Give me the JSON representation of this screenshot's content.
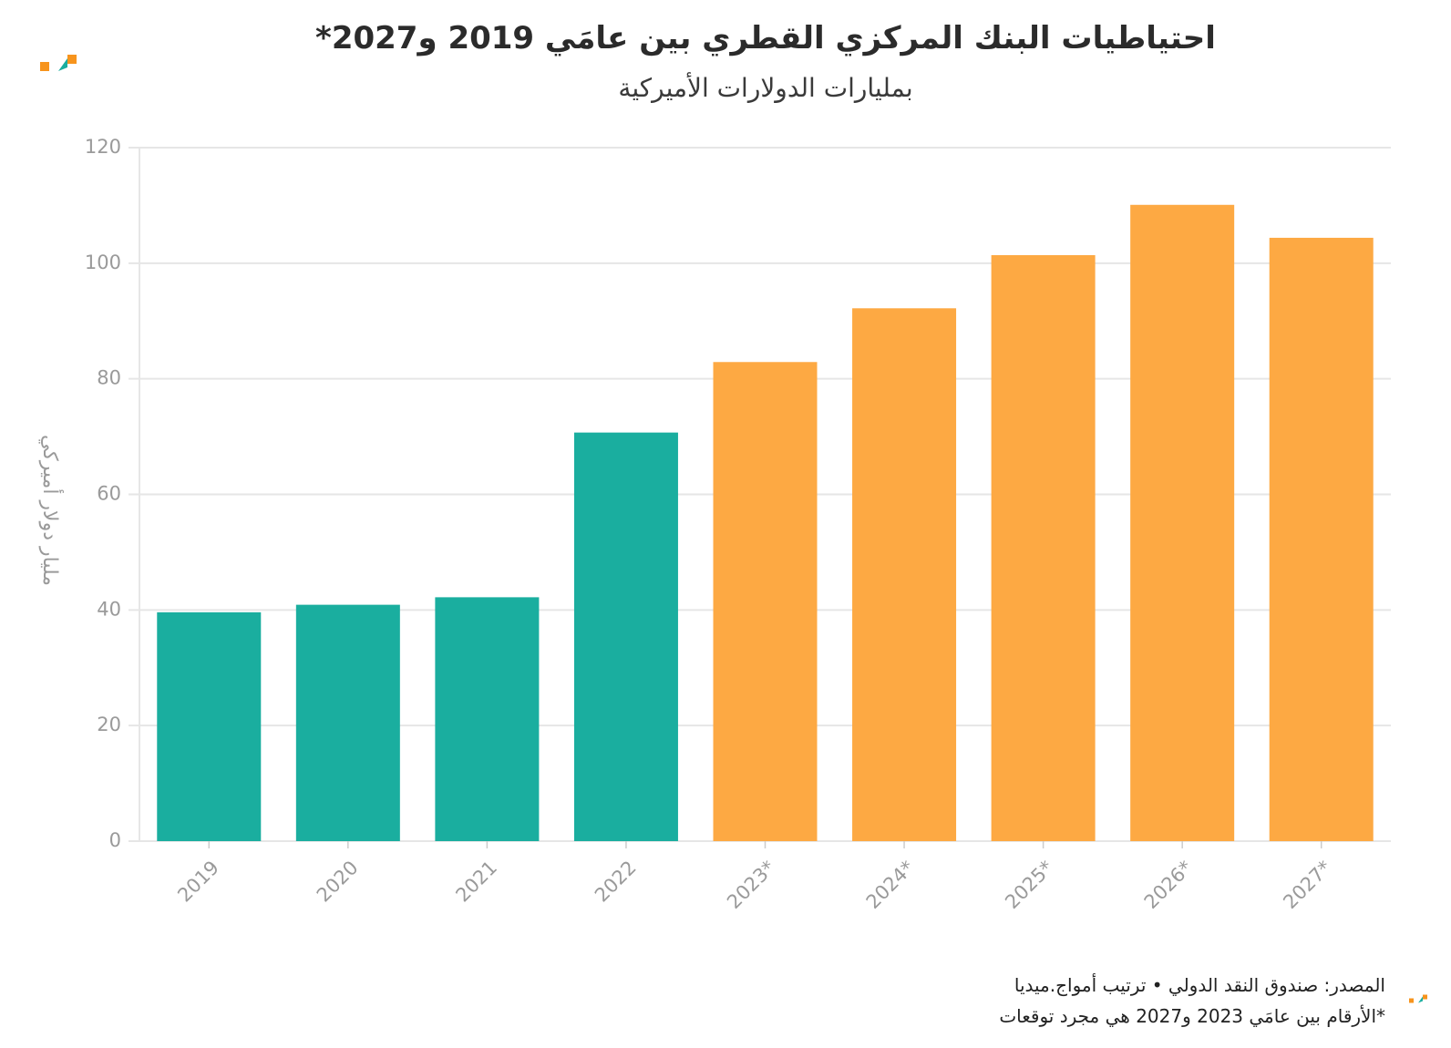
{
  "header": {
    "title": "احتياطيات البنك المركزي القطري بين عامَي 2019 و2027*",
    "subtitle": "بمليارات الدولارات الأميركية"
  },
  "footer": {
    "source": "المصدر: صندوق النقد الدولي • ترتيب أمواج.ميديا",
    "note": "*الأرقام بين عامَي 2023 و2027 هي مجرد توقعات"
  },
  "colors": {
    "actual": "#1aae9f",
    "forecast": "#fda943",
    "grid": "#e6e6e6",
    "logo_teal": "#1aae9f",
    "logo_orange": "#f7941d"
  },
  "chart_data": {
    "type": "bar",
    "title": "احتياطيات البنك المركزي القطري بين عامَي 2019 و2027*",
    "subtitle": "بمليارات الدولارات الأميركية",
    "ylabel": "مليار دولار أميركي",
    "xlabel": "",
    "ylim": [
      0,
      120
    ],
    "yticks": [
      0,
      20,
      40,
      60,
      80,
      100,
      120
    ],
    "grid": true,
    "categories": [
      "2019",
      "2020",
      "2021",
      "2022",
      "2023*",
      "2024*",
      "2025*",
      "2026*",
      "2027*"
    ],
    "values": [
      39.6,
      40.9,
      42.2,
      70.7,
      82.9,
      92.2,
      101.4,
      110.1,
      104.4
    ],
    "forecast": [
      false,
      false,
      false,
      false,
      true,
      true,
      true,
      true,
      true
    ]
  }
}
